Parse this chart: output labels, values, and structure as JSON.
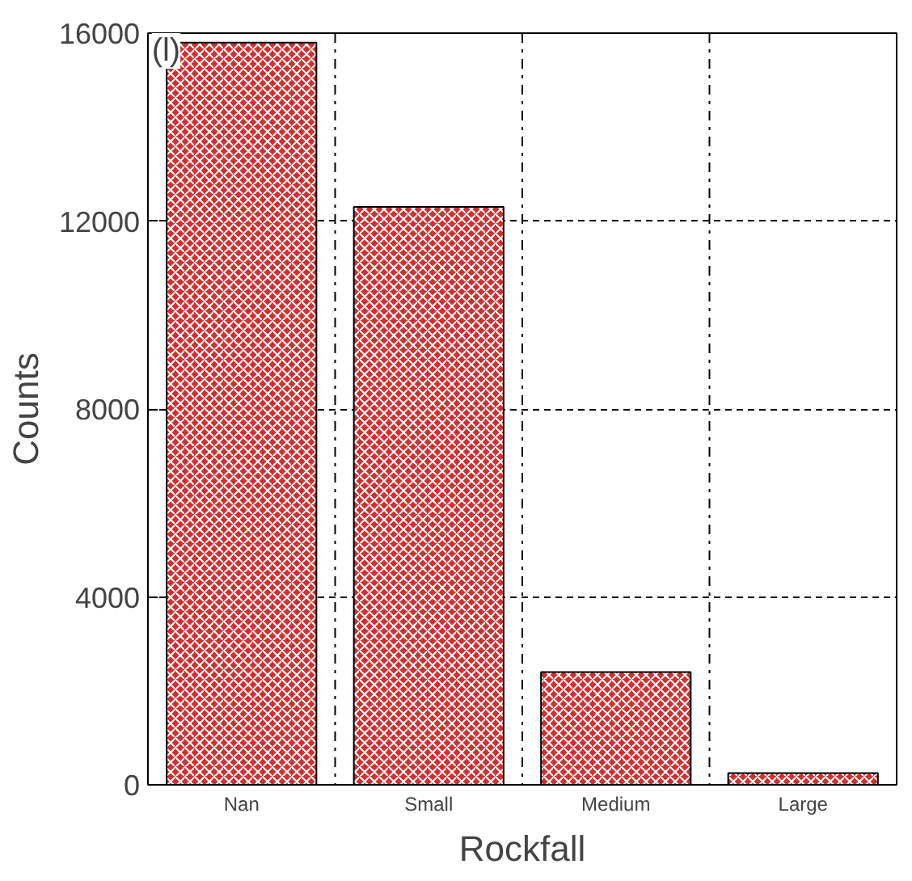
{
  "chart_data": {
    "type": "bar",
    "xlabel": "Rockfall",
    "ylabel": "Counts",
    "categories": [
      "Nan",
      "Small",
      "Medium",
      "Large"
    ],
    "values": [
      15800,
      12300,
      2400,
      250
    ],
    "color": "#d03030",
    "ylim": [
      0,
      16000
    ],
    "yticks": [
      0,
      4000,
      8000,
      12000,
      16000
    ],
    "grid": true,
    "annotations": [
      "(l)"
    ]
  }
}
